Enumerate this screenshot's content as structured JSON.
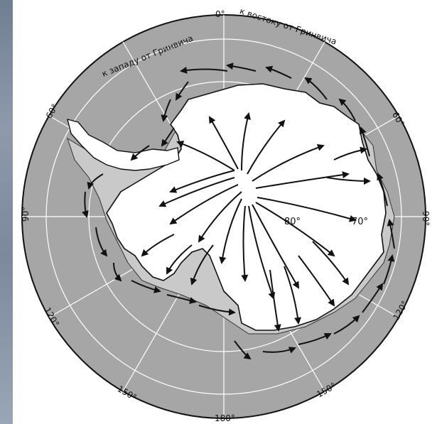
{
  "map": {
    "title": "",
    "top_left_arc_label": "к западу от Гринвича",
    "top_right_arc_label": "к востоку от Гринвича",
    "meridian_labels": {
      "zero": "0°",
      "sixty_w": "60°",
      "ninety_w": "90°",
      "one_twenty_w": "120°",
      "one_fifty_w": "150°",
      "one_eighty": "180°",
      "one_fifty_e": "150°",
      "one_twenty_e": "120°",
      "ninety_e": "90°",
      "sixty_e": "60°"
    },
    "latitude_labels": {
      "eighty": "80°",
      "seventy": "70°"
    },
    "colors": {
      "ocean": "#a6a6a6",
      "ice_shelf": "#c9c9c9",
      "land": "#ffffff",
      "arrows": "#111111",
      "grid": "#ffffff",
      "outline": "#111111"
    },
    "features": [
      "Antarctic continent",
      "ice shelves",
      "coastal wind arrows",
      "katabatic wind arrows"
    ]
  }
}
